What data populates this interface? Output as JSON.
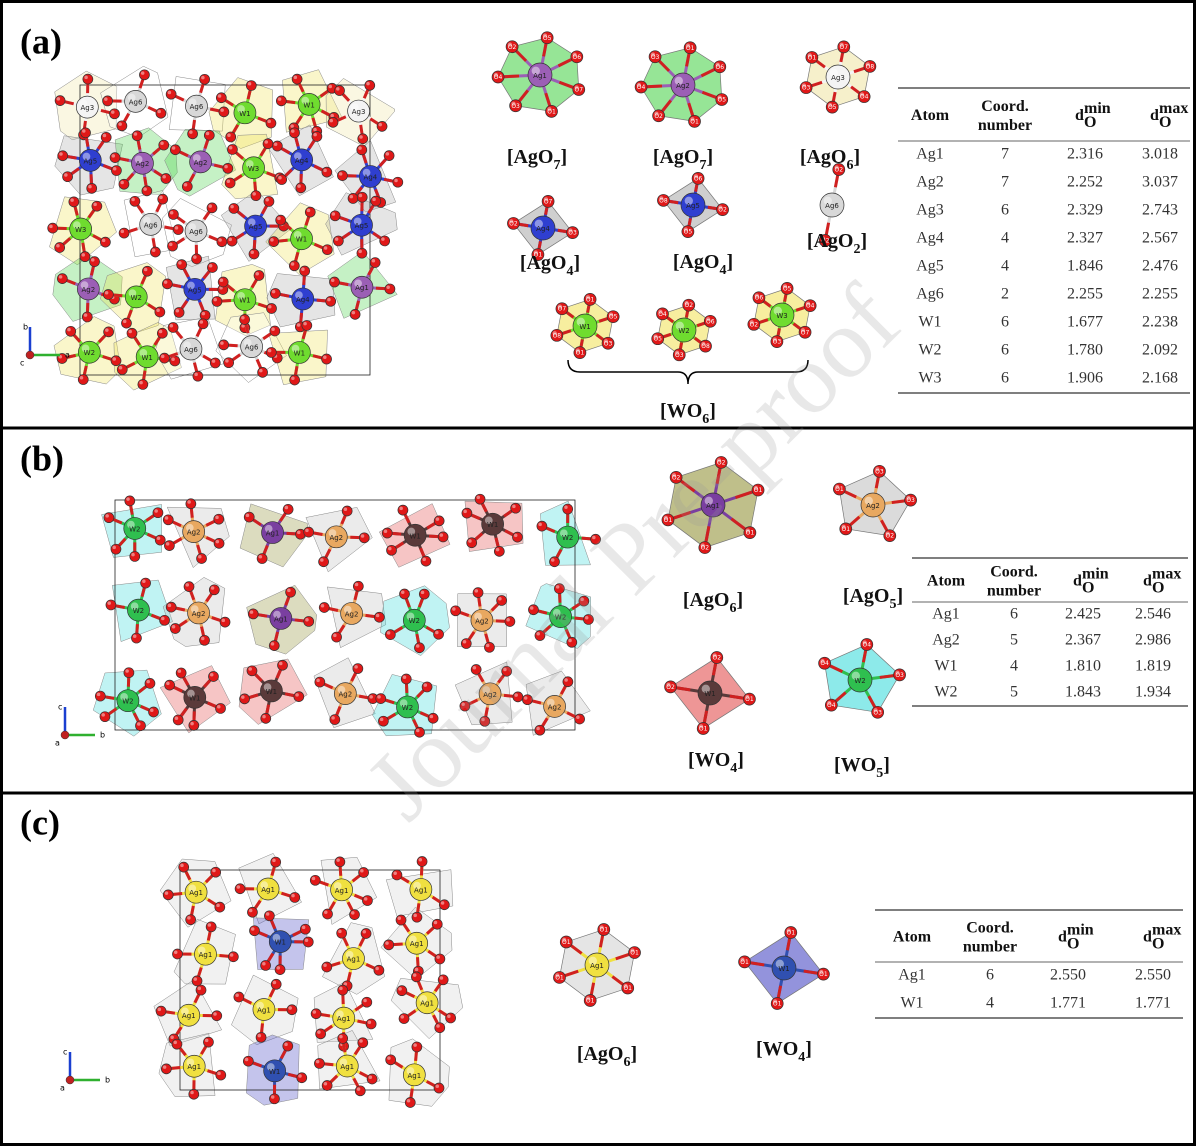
{
  "watermark": "Journal Pre-proof",
  "panels": [
    {
      "label": "(a)",
      "structure": {
        "atoms": [
          "Ag3",
          "Ag6",
          "Ag6",
          "W1",
          "W1",
          "Ag3",
          "Ag5",
          "Ag2",
          "Ag2",
          "W3",
          "Ag4",
          "Ag4",
          "W3",
          "Ag6",
          "Ag6",
          "Ag5",
          "W1",
          "Ag5",
          "Ag2",
          "W2",
          "Ag5",
          "W1",
          "Ag4",
          "Ag1",
          "W2",
          "W1",
          "Ag6",
          "Ag6",
          "W1"
        ],
        "axes": {
          "up": "b",
          "right": "a",
          "out": "c"
        }
      },
      "polyhedra": [
        {
          "atom": "Ag1",
          "color": "#9b5fb5",
          "poly_color": "#3fcf3f",
          "ligands": [
            "O5",
            "O6",
            "O7",
            "O1",
            "O3",
            "O4",
            "O2"
          ],
          "caption": [
            "[AgO",
            "7",
            "]"
          ]
        },
        {
          "atom": "Ag2",
          "color": "#9b5fb5",
          "poly_color": "#3fcf3f",
          "ligands": [
            "O1",
            "O6",
            "O5",
            "O1",
            "O2",
            "O4",
            "O3"
          ],
          "caption": [
            "[AgO",
            "7",
            "]"
          ]
        },
        {
          "atom": "Ag3",
          "color": "#f4f4f4",
          "poly_color": "#efe3a0",
          "ligands": [
            "O7",
            "O8",
            "O4",
            "O5",
            "O3",
            "O1"
          ],
          "caption": [
            "[AgO",
            "6",
            "]"
          ]
        },
        {
          "atom": "Ag4",
          "color": "#2f3fd0",
          "poly_color": "#a8a8a8",
          "ligands": [
            "O7",
            "O3",
            "O1",
            "O2"
          ],
          "caption": [
            "[AgO",
            "4",
            "]"
          ]
        },
        {
          "atom": "Ag5",
          "color": "#2f3fd0",
          "poly_color": "#a8a8a8",
          "ligands": [
            "O6",
            "O2",
            "O5",
            "O8"
          ],
          "caption": [
            "[AgO",
            "4",
            "]"
          ]
        },
        {
          "atom": "Ag6",
          "color": "#d8d8d8",
          "poly_color": "#ffffff",
          "ligands": [
            "O2",
            "O2"
          ],
          "caption": [
            "[AgO",
            "2",
            "]"
          ]
        },
        {
          "atom": "W1",
          "color": "#6fdc2f",
          "poly_color": "#f0e050",
          "ligands": [
            "O1",
            "O5",
            "O3",
            "O1",
            "O8",
            "O7"
          ]
        },
        {
          "atom": "W2",
          "color": "#6fdc2f",
          "poly_color": "#f0e050",
          "ligands": [
            "O2",
            "O6",
            "O8",
            "O3",
            "O5",
            "O4"
          ]
        },
        {
          "atom": "W3",
          "color": "#6fdc2f",
          "poly_color": "#f0e050",
          "ligands": [
            "O5",
            "O4",
            "O7",
            "O3",
            "O2",
            "O6"
          ]
        }
      ],
      "group_caption": [
        "[WO",
        "6",
        "]"
      ],
      "table": {
        "header": {
          "atom": "Atom",
          "coord": [
            "Coord.",
            "number"
          ],
          "dmin": {
            "base": "d",
            "sub": "O",
            "sup": "min"
          },
          "dmax": {
            "base": "d",
            "sub": "O",
            "sup": "max"
          }
        },
        "rows": [
          [
            "Ag1",
            "7",
            "2.316",
            "3.018"
          ],
          [
            "Ag2",
            "7",
            "2.252",
            "3.037"
          ],
          [
            "Ag3",
            "6",
            "2.329",
            "2.743"
          ],
          [
            "Ag4",
            "4",
            "2.327",
            "2.567"
          ],
          [
            "Ag5",
            "4",
            "1.846",
            "2.476"
          ],
          [
            "Ag6",
            "2",
            "2.255",
            "2.255"
          ],
          [
            "W1",
            "6",
            "1.677",
            "2.238"
          ],
          [
            "W2",
            "6",
            "1.780",
            "2.092"
          ],
          [
            "W3",
            "6",
            "1.906",
            "2.168"
          ]
        ]
      }
    },
    {
      "label": "(b)",
      "structure": {
        "atoms": [
          "W2",
          "Ag2",
          "Ag1",
          "Ag2",
          "W1",
          "W1",
          "W2",
          "W2",
          "Ag2",
          "Ag1",
          "Ag2",
          "W2",
          "Ag2",
          "W2",
          "W2",
          "W1",
          "W1",
          "Ag2",
          "W2",
          "Ag2",
          "Ag2"
        ],
        "axes": {
          "up": "c",
          "right": "b",
          "out": "a"
        }
      },
      "polyhedra": [
        {
          "atom": "Ag1",
          "color": "#7a3fa0",
          "poly_color": "#8a8a2a",
          "ligands": [
            "O2",
            "O1",
            "O1",
            "O2",
            "O1",
            "O2"
          ],
          "caption": [
            "[AgO",
            "6",
            "]"
          ]
        },
        {
          "atom": "Ag2",
          "color": "#e8a860",
          "poly_color": "#bdbdbd",
          "ligands": [
            "O3",
            "O3",
            "O2",
            "O1",
            "O1"
          ],
          "caption": [
            "[AgO",
            "5",
            "]"
          ]
        },
        {
          "atom": "W1",
          "color": "#5a3a3a",
          "poly_color": "#e04040",
          "ligands": [
            "O2",
            "O1",
            "O1",
            "O2"
          ],
          "caption": [
            "[WO",
            "4",
            "]"
          ]
        },
        {
          "atom": "W2",
          "color": "#2fbf4f",
          "poly_color": "#30d8d8",
          "ligands": [
            "O4",
            "O3",
            "O3",
            "O4",
            "O4"
          ],
          "caption": [
            "[WO",
            "5",
            "]"
          ]
        }
      ],
      "table": {
        "header": {
          "atom": "Atom",
          "coord": [
            "Coord.",
            "number"
          ],
          "dmin": {
            "base": "d",
            "sub": "O",
            "sup": "min"
          },
          "dmax": {
            "base": "d",
            "sub": "O",
            "sup": "max"
          }
        },
        "rows": [
          [
            "Ag1",
            "6",
            "2.425",
            "2.546"
          ],
          [
            "Ag2",
            "5",
            "2.367",
            "2.986"
          ],
          [
            "W1",
            "4",
            "1.810",
            "1.819"
          ],
          [
            "W2",
            "5",
            "1.843",
            "1.934"
          ]
        ]
      }
    },
    {
      "label": "(c)",
      "structure": {
        "atoms": [
          "Ag1",
          "Ag1",
          "Ag1",
          "Ag1",
          "Ag1",
          "W1",
          "Ag1",
          "Ag1",
          "Ag1",
          "Ag1",
          "Ag1",
          "Ag1",
          "Ag1",
          "W1",
          "Ag1",
          "Ag1"
        ],
        "axes": {
          "up": "c",
          "right": "b",
          "out": "a"
        }
      },
      "polyhedra": [
        {
          "atom": "Ag1",
          "color": "#f0e040",
          "poly_color": "#cfcfcf",
          "ligands": [
            "O1",
            "O1",
            "O1",
            "O1",
            "O1",
            "O1"
          ],
          "caption": [
            "[AgO",
            "6",
            "]"
          ]
        },
        {
          "atom": "W1",
          "color": "#3050b0",
          "poly_color": "#3a3ac0",
          "ligands": [
            "O1",
            "O1",
            "O1",
            "O1"
          ],
          "caption": [
            "[WO",
            "4",
            "]"
          ]
        }
      ],
      "table": {
        "header": {
          "atom": "Atom",
          "coord": [
            "Coord.",
            "number"
          ],
          "dmin": {
            "base": "d",
            "sub": "O",
            "sup": "min"
          },
          "dmax": {
            "base": "d",
            "sub": "O",
            "sup": "max"
          }
        },
        "rows": [
          [
            "Ag1",
            "6",
            "2.550",
            "2.550"
          ],
          [
            "W1",
            "4",
            "1.771",
            "1.771"
          ]
        ]
      }
    }
  ]
}
